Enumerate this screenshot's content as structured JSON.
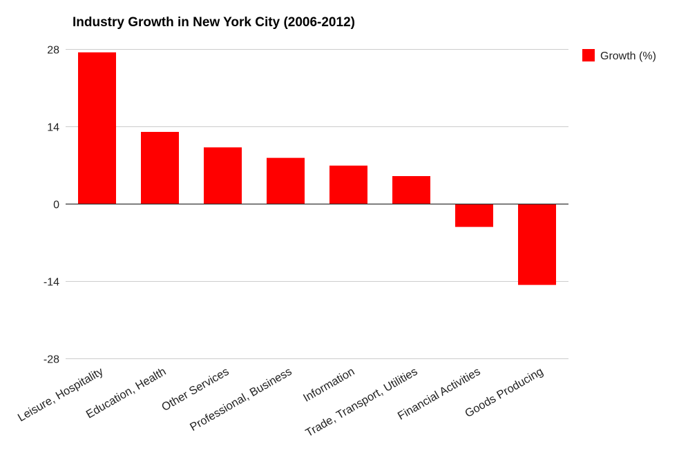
{
  "chart_data": {
    "type": "bar",
    "title": "Industry Growth in New York City (2006-2012)",
    "categories": [
      "Leisure, Hospitality",
      "Education, Health",
      "Other Services",
      "Professional, Business",
      "Information",
      "Trade, Transport, Utilities",
      "Financial Activities",
      "Goods Producing"
    ],
    "series": [
      {
        "name": "Growth (%)",
        "color": "#ff0000",
        "values": [
          27.4,
          13.0,
          10.2,
          8.3,
          6.9,
          5.0,
          -4.2,
          -14.7
        ]
      }
    ],
    "ylim": [
      -28,
      28
    ],
    "yticks": [
      "28",
      "14",
      "0",
      "-14",
      "-28"
    ],
    "ytick_values": [
      28,
      14,
      0,
      -14,
      -28
    ],
    "grid": true,
    "legend_position": "right"
  }
}
